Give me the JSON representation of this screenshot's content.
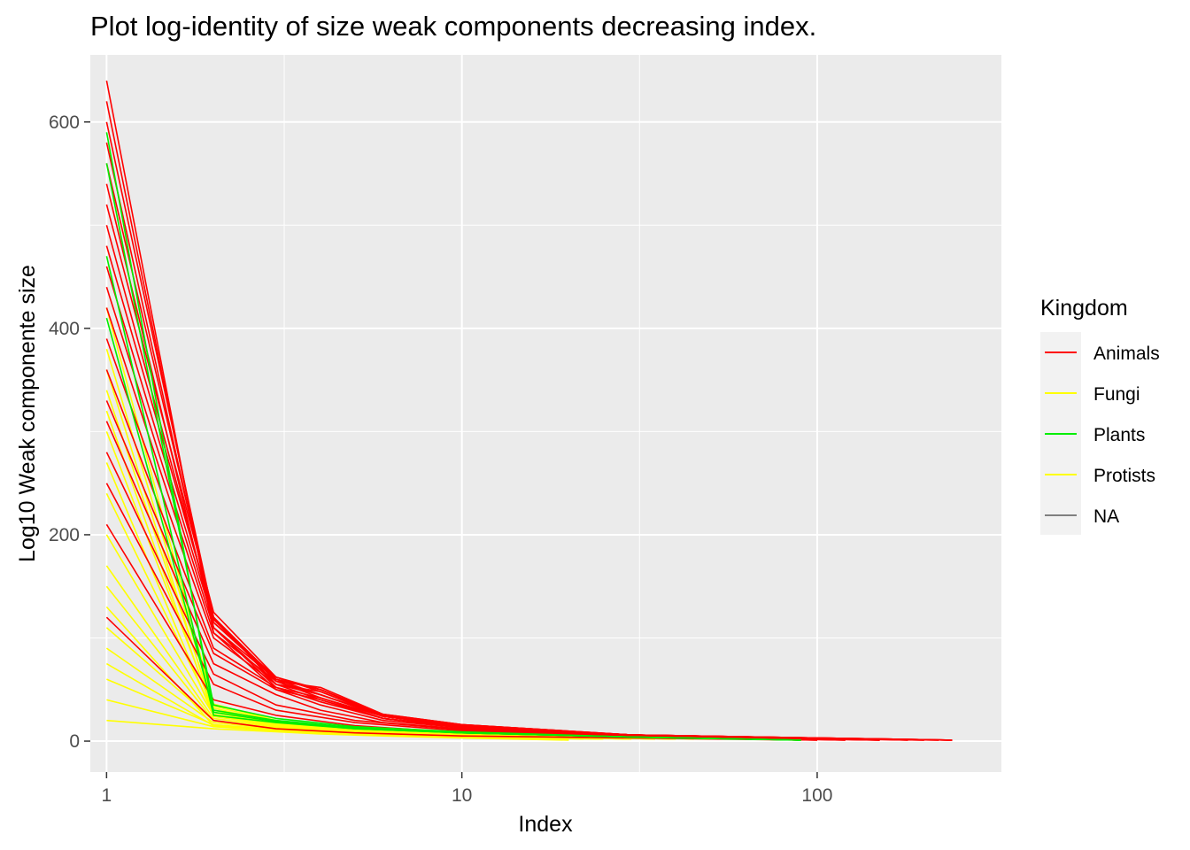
{
  "chart_data": {
    "type": "line",
    "title": "Plot log-identity of size  weak components decreasing index.",
    "xlabel": "Index",
    "ylabel": "Log10 Weak componente size",
    "x_scale": "log10",
    "xlim": [
      0.9,
      330
    ],
    "ylim": [
      -30,
      665
    ],
    "x_ticks": [
      1,
      10,
      100
    ],
    "x_tick_labels": [
      "1",
      "10",
      "100"
    ],
    "y_ticks": [
      0,
      200,
      400,
      600
    ],
    "y_tick_labels": [
      "0",
      "200",
      "400",
      "600"
    ],
    "grid": true,
    "legend": {
      "title": "Kingdom",
      "position": "right",
      "entries": [
        {
          "label": "Animals",
          "color": "#FF0000"
        },
        {
          "label": "Fungi",
          "color": "#FFFF00"
        },
        {
          "label": "Plants",
          "color": "#00EE00"
        },
        {
          "label": "Protists",
          "color": "#FFFF00"
        },
        {
          "label": "NA",
          "color": "#808080"
        }
      ]
    },
    "series": [
      {
        "kingdom": "Fungi",
        "color": "#FFFF00",
        "x": [
          1,
          2,
          3,
          4,
          6,
          10,
          20
        ],
        "y": [
          20,
          12,
          9,
          7,
          5,
          3,
          1
        ]
      },
      {
        "kingdom": "Fungi",
        "color": "#FFFF00",
        "x": [
          1,
          2,
          3,
          5,
          8,
          15
        ],
        "y": [
          40,
          14,
          10,
          7,
          5,
          2
        ]
      },
      {
        "kingdom": "Fungi",
        "color": "#FFFF00",
        "x": [
          1,
          2,
          3,
          5,
          9,
          18
        ],
        "y": [
          60,
          16,
          11,
          8,
          5,
          2
        ]
      },
      {
        "kingdom": "Fungi",
        "color": "#FFFF00",
        "x": [
          1,
          2,
          3,
          5,
          10,
          20
        ],
        "y": [
          90,
          18,
          12,
          8,
          5,
          2
        ]
      },
      {
        "kingdom": "Fungi",
        "color": "#FFFF00",
        "x": [
          1,
          2,
          3,
          5,
          10,
          25
        ],
        "y": [
          110,
          20,
          13,
          9,
          5,
          2
        ]
      },
      {
        "kingdom": "Fungi",
        "color": "#FFFF00",
        "x": [
          1,
          2,
          3,
          5,
          10,
          22
        ],
        "y": [
          130,
          15,
          11,
          8,
          5,
          2
        ]
      },
      {
        "kingdom": "Fungi",
        "color": "#FFFF00",
        "x": [
          1,
          2,
          3,
          5,
          10,
          30
        ],
        "y": [
          170,
          22,
          14,
          9,
          6,
          2
        ]
      },
      {
        "kingdom": "Fungi",
        "color": "#FFFF00",
        "x": [
          1,
          2,
          3,
          5,
          12,
          30
        ],
        "y": [
          200,
          25,
          15,
          10,
          5,
          2
        ]
      },
      {
        "kingdom": "Fungi",
        "color": "#FFFF00",
        "x": [
          1,
          2,
          3,
          5,
          12,
          35
        ],
        "y": [
          240,
          28,
          16,
          10,
          6,
          2
        ]
      },
      {
        "kingdom": "Fungi",
        "color": "#FFFF00",
        "x": [
          1,
          2,
          3,
          5,
          12,
          40
        ],
        "y": [
          270,
          24,
          15,
          10,
          6,
          2
        ]
      },
      {
        "kingdom": "Fungi",
        "color": "#FFFF00",
        "x": [
          1,
          2,
          3,
          5,
          12,
          40
        ],
        "y": [
          300,
          30,
          17,
          11,
          6,
          2
        ]
      },
      {
        "kingdom": "Fungi",
        "color": "#FFFF00",
        "x": [
          1,
          2,
          3,
          5,
          15,
          45
        ],
        "y": [
          340,
          32,
          18,
          11,
          6,
          2
        ]
      },
      {
        "kingdom": "Fungi",
        "color": "#FFFF00",
        "x": [
          1,
          2,
          3,
          5,
          15,
          50
        ],
        "y": [
          380,
          34,
          19,
          12,
          6,
          2
        ]
      },
      {
        "kingdom": "Fungi",
        "color": "#FFFF00",
        "x": [
          1,
          2,
          3,
          5,
          15,
          60
        ],
        "y": [
          420,
          36,
          20,
          12,
          6,
          2
        ]
      },
      {
        "kingdom": "Protists",
        "color": "#FFFF00",
        "x": [
          1,
          2,
          3,
          5,
          10,
          25
        ],
        "y": [
          75,
          15,
          10,
          7,
          4,
          2
        ]
      },
      {
        "kingdom": "Protists",
        "color": "#FFFF00",
        "x": [
          1,
          2,
          3,
          5,
          10,
          30
        ],
        "y": [
          150,
          20,
          12,
          8,
          5,
          2
        ]
      },
      {
        "kingdom": "Protists",
        "color": "#FFFF00",
        "x": [
          1,
          2,
          3,
          5,
          12,
          35
        ],
        "y": [
          320,
          26,
          15,
          10,
          6,
          2
        ]
      },
      {
        "kingdom": "Protists",
        "color": "#FFFF00",
        "x": [
          1,
          2,
          3,
          5,
          12,
          40
        ],
        "y": [
          360,
          28,
          16,
          10,
          6,
          2
        ]
      },
      {
        "kingdom": "Animals",
        "color": "#FF0000",
        "x": [
          1,
          2,
          3,
          5,
          10,
          30,
          90
        ],
        "y": [
          120,
          20,
          12,
          8,
          5,
          3,
          1
        ]
      },
      {
        "kingdom": "Animals",
        "color": "#FF0000",
        "x": [
          1,
          2,
          3,
          5,
          10,
          30,
          90
        ],
        "y": [
          210,
          40,
          25,
          15,
          8,
          4,
          1
        ]
      },
      {
        "kingdom": "Animals",
        "color": "#FF0000",
        "x": [
          1,
          2,
          3,
          5,
          10,
          30,
          100
        ],
        "y": [
          250,
          55,
          30,
          18,
          10,
          4,
          1
        ]
      },
      {
        "kingdom": "Animals",
        "color": "#FF0000",
        "x": [
          1,
          2,
          3,
          5,
          10,
          30,
          100
        ],
        "y": [
          280,
          65,
          35,
          20,
          11,
          5,
          1
        ]
      },
      {
        "kingdom": "Animals",
        "color": "#FF0000",
        "x": [
          1,
          2,
          3,
          4,
          6,
          10,
          30,
          120
        ],
        "y": [
          310,
          75,
          45,
          30,
          18,
          12,
          5,
          1
        ]
      },
      {
        "kingdom": "Animals",
        "color": "#FF0000",
        "x": [
          1,
          2,
          3,
          4,
          6,
          10,
          30,
          120
        ],
        "y": [
          330,
          85,
          50,
          35,
          20,
          13,
          5,
          1
        ]
      },
      {
        "kingdom": "Animals",
        "color": "#FF0000",
        "x": [
          1,
          2,
          3,
          4,
          6,
          10,
          30,
          150
        ],
        "y": [
          360,
          90,
          52,
          38,
          22,
          13,
          5,
          1
        ]
      },
      {
        "kingdom": "Animals",
        "color": "#FF0000",
        "x": [
          1,
          2,
          3,
          4,
          6,
          10,
          30,
          150
        ],
        "y": [
          390,
          100,
          55,
          40,
          22,
          14,
          5,
          1
        ]
      },
      {
        "kingdom": "Animals",
        "color": "#FF0000",
        "x": [
          1,
          2,
          3,
          4,
          6,
          10,
          30,
          150
        ],
        "y": [
          420,
          105,
          58,
          42,
          24,
          14,
          6,
          1
        ]
      },
      {
        "kingdom": "Animals",
        "color": "#FF0000",
        "x": [
          1,
          2,
          3,
          4,
          6,
          10,
          30,
          180
        ],
        "y": [
          440,
          110,
          60,
          45,
          25,
          15,
          6,
          1
        ]
      },
      {
        "kingdom": "Animals",
        "color": "#FF0000",
        "x": [
          1,
          2,
          3,
          4,
          6,
          10,
          30,
          180
        ],
        "y": [
          460,
          115,
          62,
          48,
          25,
          15,
          6,
          1
        ]
      },
      {
        "kingdom": "Animals",
        "color": "#FF0000",
        "x": [
          1,
          2,
          3,
          4,
          6,
          10,
          30,
          200
        ],
        "y": [
          480,
          120,
          60,
          50,
          25,
          15,
          6,
          1
        ]
      },
      {
        "kingdom": "Animals",
        "color": "#FF0000",
        "x": [
          1,
          2,
          3,
          4,
          6,
          10,
          30,
          200
        ],
        "y": [
          500,
          118,
          58,
          45,
          24,
          15,
          6,
          1
        ]
      },
      {
        "kingdom": "Animals",
        "color": "#FF0000",
        "x": [
          1,
          2,
          3,
          4,
          6,
          10,
          30,
          220
        ],
        "y": [
          520,
          125,
          62,
          50,
          26,
          16,
          6,
          1
        ]
      },
      {
        "kingdom": "Animals",
        "color": "#FF0000",
        "x": [
          1,
          2,
          3,
          4,
          6,
          10,
          30,
          220
        ],
        "y": [
          540,
          110,
          55,
          48,
          24,
          15,
          6,
          1
        ]
      },
      {
        "kingdom": "Animals",
        "color": "#FF0000",
        "x": [
          1,
          2,
          3,
          4,
          6,
          10,
          30,
          240
        ],
        "y": [
          560,
          120,
          58,
          52,
          26,
          16,
          6,
          1
        ]
      },
      {
        "kingdom": "Animals",
        "color": "#FF0000",
        "x": [
          1,
          2,
          3,
          4,
          6,
          10,
          30,
          240
        ],
        "y": [
          580,
          115,
          60,
          50,
          25,
          16,
          6,
          1
        ]
      },
      {
        "kingdom": "Animals",
        "color": "#FF0000",
        "x": [
          1,
          2,
          3,
          4,
          6,
          10,
          30,
          240
        ],
        "y": [
          600,
          120,
          55,
          45,
          24,
          15,
          6,
          1
        ]
      },
      {
        "kingdom": "Animals",
        "color": "#FF0000",
        "x": [
          1,
          2,
          3,
          4,
          6,
          10,
          30,
          240
        ],
        "y": [
          620,
          110,
          52,
          42,
          22,
          14,
          6,
          1
        ]
      },
      {
        "kingdom": "Animals",
        "color": "#FF0000",
        "x": [
          1,
          2,
          3,
          4,
          6,
          10,
          30,
          240
        ],
        "y": [
          640,
          105,
          50,
          40,
          22,
          14,
          6,
          1
        ]
      },
      {
        "kingdom": "Plants",
        "color": "#00EE00",
        "x": [
          1,
          2,
          3,
          5,
          10,
          30,
          90
        ],
        "y": [
          470,
          25,
          18,
          12,
          8,
          4,
          1
        ]
      },
      {
        "kingdom": "Plants",
        "color": "#00EE00",
        "x": [
          1,
          2,
          3,
          5,
          10,
          30,
          90
        ],
        "y": [
          410,
          30,
          20,
          13,
          8,
          4,
          1
        ]
      },
      {
        "kingdom": "Plants",
        "color": "#00EE00",
        "x": [
          1,
          2,
          3,
          5,
          10,
          30,
          90
        ],
        "y": [
          560,
          35,
          22,
          14,
          9,
          4,
          1
        ]
      },
      {
        "kingdom": "Plants",
        "color": "#00EE00",
        "x": [
          1,
          2,
          3,
          5,
          10,
          30,
          90
        ],
        "y": [
          590,
          28,
          19,
          12,
          8,
          4,
          1
        ]
      }
    ]
  }
}
